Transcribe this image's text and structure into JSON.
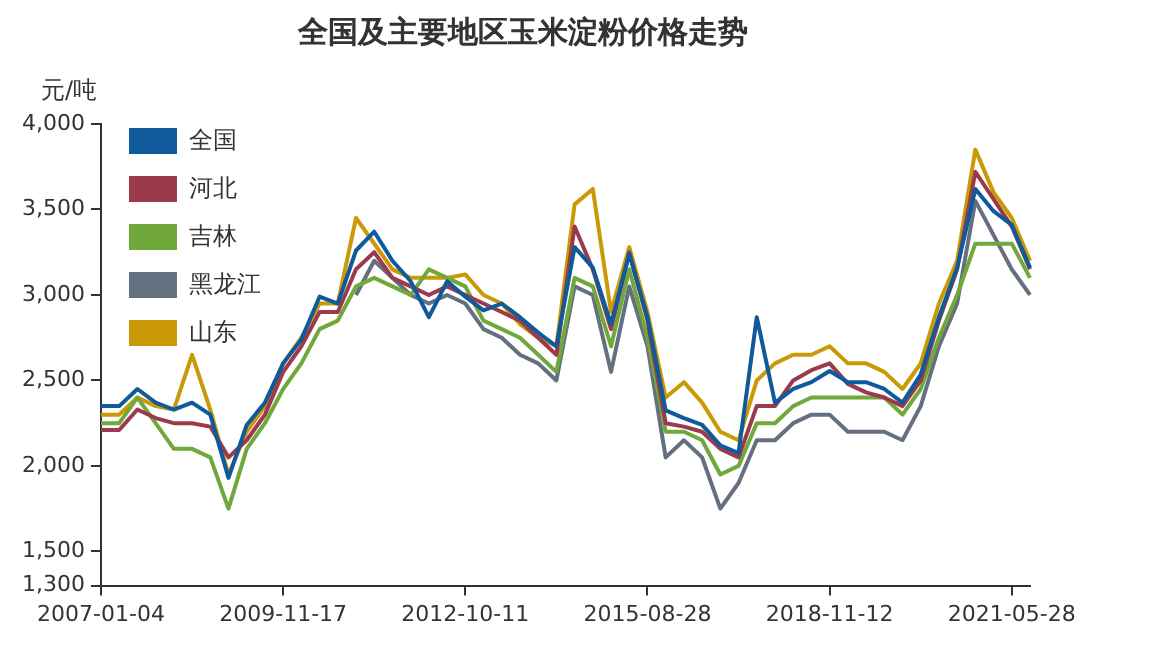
{
  "chart_data": {
    "type": "line",
    "title": "全国及主要地区玉米淀粉价格走势",
    "ylabel": "元/吨",
    "categories": [
      "2007-01-04",
      null,
      null,
      null,
      null,
      null,
      null,
      null,
      null,
      null,
      "2009-11-17",
      null,
      null,
      null,
      null,
      null,
      null,
      null,
      null,
      null,
      "2012-10-11",
      null,
      null,
      null,
      null,
      null,
      null,
      null,
      null,
      null,
      "2015-08-28",
      null,
      null,
      null,
      null,
      null,
      null,
      null,
      null,
      null,
      "2018-11-12",
      null,
      null,
      null,
      null,
      null,
      null,
      null,
      null,
      null,
      "2021-05-28",
      null
    ],
    "series": [
      {
        "name": "全国",
        "color": "#0e5a9a",
        "values": [
          2350,
          2350,
          2450,
          2370,
          2330,
          2370,
          2300,
          1930,
          2240,
          2370,
          2600,
          2740,
          2990,
          2950,
          3260,
          3370,
          3200,
          3080,
          2870,
          3080,
          2990,
          2910,
          2950,
          2870,
          2780,
          2700,
          3280,
          3160,
          2830,
          3240,
          2870,
          2325,
          2280,
          2240,
          2120,
          2075,
          2870,
          2370,
          2450,
          2490,
          2555,
          2490,
          2490,
          2450,
          2370,
          2535,
          2870,
          3160,
          3620,
          3490,
          3410,
          3160
        ]
      },
      {
        "name": "河北",
        "color": "#9b3a4d",
        "values": [
          2210,
          2210,
          2330,
          2280,
          2250,
          2250,
          2230,
          2050,
          2150,
          2300,
          2550,
          2700,
          2900,
          2900,
          3150,
          3250,
          3100,
          3050,
          3000,
          3050,
          3000,
          2950,
          2900,
          2850,
          2750,
          2650,
          3400,
          3150,
          2800,
          3250,
          2850,
          2250,
          2230,
          2200,
          2100,
          2050,
          2350,
          2350,
          2500,
          2560,
          2600,
          2480,
          2430,
          2400,
          2350,
          2500,
          2850,
          3150,
          3720,
          3560,
          3400,
          3150
        ]
      },
      {
        "name": "吉林",
        "color": "#70a83b",
        "values": [
          2250,
          2250,
          2400,
          2250,
          2100,
          2100,
          2050,
          1750,
          2100,
          2250,
          2450,
          2600,
          2800,
          2850,
          3050,
          3100,
          3050,
          3000,
          3150,
          3100,
          3050,
          2850,
          2800,
          2750,
          2650,
          2550,
          3100,
          3050,
          2700,
          3150,
          2750,
          2200,
          2200,
          2150,
          1950,
          2000,
          2250,
          2250,
          2350,
          2400,
          2400,
          2400,
          2400,
          2400,
          2300,
          2450,
          2750,
          3000,
          3300,
          3300,
          3300,
          3100
        ]
      },
      {
        "name": "黑龙江",
        "color": "#647080",
        "values": [
          null,
          null,
          null,
          null,
          null,
          null,
          null,
          null,
          null,
          null,
          null,
          null,
          null,
          null,
          3000,
          3200,
          3100,
          3000,
          2950,
          3000,
          2950,
          2800,
          2750,
          2650,
          2600,
          2500,
          3050,
          3000,
          2550,
          3050,
          2700,
          2050,
          2150,
          2050,
          1750,
          1900,
          2150,
          2150,
          2250,
          2300,
          2300,
          2200,
          2200,
          2200,
          2150,
          2350,
          2700,
          2950,
          3550,
          3350,
          3150,
          3000
        ]
      },
      {
        "name": "山东",
        "color": "#c99a06",
        "values": [
          2300,
          2300,
          2400,
          2350,
          2330,
          2650,
          2330,
          1950,
          2200,
          2350,
          2600,
          2750,
          2950,
          2950,
          3450,
          3300,
          3150,
          3100,
          3100,
          3100,
          3120,
          3000,
          2950,
          2830,
          2750,
          2700,
          3530,
          3620,
          2900,
          3280,
          2900,
          2400,
          2490,
          2370,
          2200,
          2150,
          2500,
          2600,
          2650,
          2650,
          2700,
          2600,
          2600,
          2550,
          2450,
          2600,
          2950,
          3200,
          3850,
          3600,
          3450,
          3200
        ]
      }
    ],
    "ylim": [
      1300,
      4000
    ],
    "yticks": [
      {
        "value": 1300,
        "label": "1,300"
      },
      {
        "value": 1500,
        "label": "1,500"
      },
      {
        "value": 2000,
        "label": "2,000"
      },
      {
        "value": 2500,
        "label": "2,500"
      },
      {
        "value": 3000,
        "label": "3,000"
      },
      {
        "value": 3500,
        "label": "3,500"
      },
      {
        "value": 4000,
        "label": "4,000"
      }
    ],
    "grid": false,
    "legend": "top left"
  }
}
